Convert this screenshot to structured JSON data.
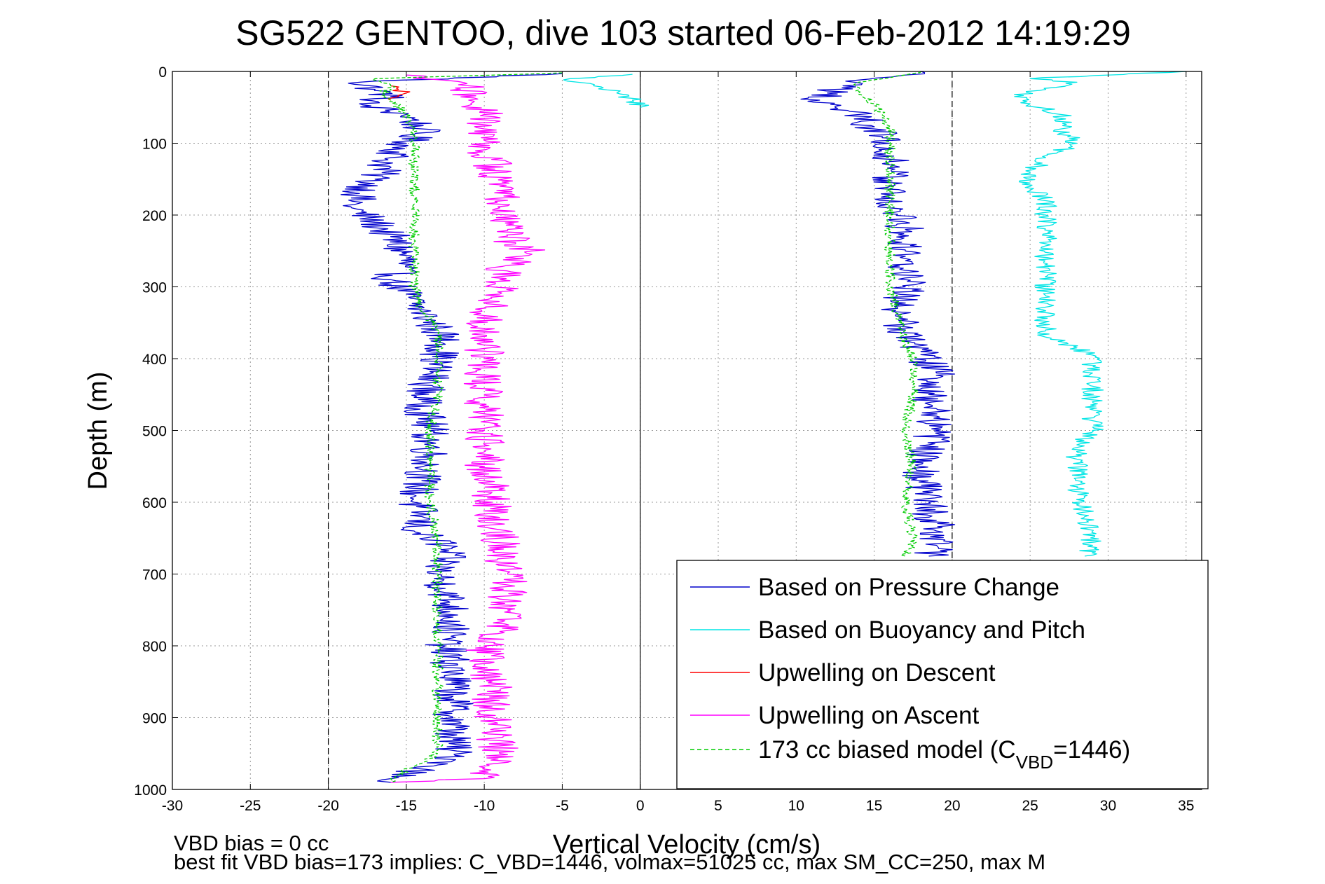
{
  "chart_data": {
    "type": "line",
    "title": "SG522 GENTOO, dive 103 started 06-Feb-2012 14:19:29",
    "xlabel": "Vertical Velocity (cm/s)",
    "ylabel": "Depth (m)",
    "xlim": [
      -30,
      36
    ],
    "ylim": [
      0,
      1000
    ],
    "y_reversed": true,
    "grid": true,
    "xticks": [
      -30,
      -25,
      -20,
      -15,
      -10,
      -5,
      0,
      5,
      10,
      15,
      20,
      25,
      30,
      35
    ],
    "yticks": [
      0,
      100,
      200,
      300,
      400,
      500,
      600,
      700,
      800,
      900,
      1000
    ],
    "reference_lines": [
      {
        "x": -20,
        "style": "dashed"
      },
      {
        "x": 0,
        "style": "solid"
      },
      {
        "x": 20,
        "style": "dashed"
      }
    ],
    "notes": [
      "VBD bias = 0 cc",
      "best fit VBD bias=173 implies: C_VBD=1446, volmax=51025 cc, max SM_CC=250, max M"
    ],
    "legend": {
      "placement": "bottom-right",
      "entries": [
        {
          "label": "Based on Pressure Change",
          "color": "#0000cc",
          "dashed": false
        },
        {
          "label": "Based on Buoyancy and Pitch",
          "color": "#00e5e5",
          "dashed": false
        },
        {
          "label": "Upwelling on Descent",
          "color": "#ff0000",
          "dashed": false
        },
        {
          "label": "Upwelling on Ascent",
          "color": "#ff00ff",
          "dashed": false
        },
        {
          "label": "173 cc biased model (C",
          "sub": "VBD",
          "after": "=1446)",
          "color": "#00cc00",
          "dashed": true
        }
      ]
    },
    "series": [
      {
        "name": "Based on Pressure Change",
        "color": "#0000cc",
        "dashed": false,
        "noise": 1.3,
        "segments": [
          {
            "depth": [
              3,
              15,
              25,
              35,
              45,
              60,
              80,
              100,
              120,
              150,
              170,
              190,
              210,
              230,
              260,
              290,
              310,
              335,
              360,
              380,
              400,
              430,
              460,
              500,
              540,
              570,
              600,
              620,
              640,
              660,
              680,
              700,
              720,
              760,
              800,
              840,
              870,
              900,
              930,
              960,
              985,
              990
            ],
            "velocity": [
              -5,
              -18,
              -17,
              -16,
              -18,
              -15,
              -14,
              -15,
              -16,
              -17,
              -18,
              -18.5,
              -17,
              -16,
              -15,
              -16,
              -15,
              -14,
              -13,
              -12.5,
              -13,
              -13.5,
              -14,
              -13.5,
              -13.5,
              -14,
              -14.5,
              -14,
              -14.5,
              -12.5,
              -12.5,
              -13,
              -12.5,
              -12,
              -12.5,
              -12,
              -12,
              -12,
              -12,
              -12,
              -16,
              -16
            ]
          },
          {
            "depth": [
              0,
              5,
              12,
              20,
              30,
              40,
              50,
              60,
              80,
              100,
              130,
              160,
              190,
              220,
              250,
              280,
              300,
              330,
              360,
              390,
              420,
              450,
              480,
              520,
              560,
              600,
              640,
              660,
              675
            ],
            "velocity": [
              18,
              17,
              14,
              13,
              12,
              11.5,
              12.5,
              14,
              15,
              16,
              16,
              16,
              16,
              17,
              17,
              17,
              17,
              16.5,
              17,
              18,
              19,
              18.5,
              19,
              18.5,
              18,
              18.5,
              19,
              19,
              18.5
            ]
          }
        ]
      },
      {
        "name": "Based on Buoyancy and Pitch",
        "color": "#00e5e5",
        "dashed": false,
        "noise": 0.7,
        "segments": [
          {
            "depth": [
              4,
              10,
              15,
              20,
              30,
              40,
              50
            ],
            "velocity": [
              -0.5,
              -4.5,
              -4,
              -3,
              -1.5,
              -0.5,
              0
            ]
          },
          {
            "depth": [
              0,
              10,
              15,
              25,
              35,
              45,
              60,
              80,
              100,
              120,
              140,
              160,
              180,
              200,
              240,
              280,
              320,
              360,
              370,
              385,
              395,
              420,
              460,
              500,
              520,
              540,
              580,
              620,
              660,
              675
            ],
            "velocity": [
              35,
              25,
              28,
              26,
              24,
              25,
              27,
              27,
              28,
              26,
              25,
              25,
              26,
              26,
              26,
              26,
              26,
              26,
              26,
              28,
              29,
              29,
              29,
              29,
              28,
              28,
              28,
              28.5,
              29,
              28.5
            ]
          },
          {
            "depth": [
              990,
              998
            ],
            "velocity": [
              25,
              23
            ]
          }
        ]
      },
      {
        "name": "Upwelling on Descent",
        "color": "#ff0000",
        "dashed": false,
        "noise": 0.6,
        "segments": [
          {
            "depth": [
              20,
              25,
              30,
              35,
              40
            ],
            "velocity": [
              -16,
              -15.5,
              -15,
              -15.5,
              -16
            ]
          }
        ]
      },
      {
        "name": "Upwelling on Ascent",
        "color": "#ff00ff",
        "dashed": false,
        "noise": 1.3,
        "segments": [
          {
            "depth": [
              5,
              20,
              40,
              60,
              80,
              100,
              130,
              160,
              190,
              220,
              240,
              250,
              270,
              290,
              310,
              340,
              360,
              400,
              450,
              500,
              550,
              600,
              650,
              700,
              750,
              780,
              800,
              850,
              900,
              950,
              985,
              990
            ],
            "velocity": [
              -15,
              -11,
              -11,
              -10,
              -10,
              -10,
              -9.5,
              -9,
              -9,
              -8.5,
              -8,
              -7,
              -8.5,
              -9,
              -9,
              -10,
              -10,
              -10,
              -10,
              -10,
              -10,
              -9.5,
              -9,
              -8.5,
              -8.5,
              -9,
              -10,
              -9.5,
              -9.5,
              -9,
              -10,
              -16
            ]
          }
        ]
      },
      {
        "name": "173 cc biased model (CVBD=1446)",
        "color": "#00cc00",
        "dashed": true,
        "noise": 0.35,
        "segments": [
          {
            "depth": [
              2,
              10,
              20,
              30,
              40,
              60,
              80,
              100,
              130,
              160,
              190,
              220,
              260,
              300,
              330,
              360,
              400,
              450,
              500,
              550,
              600,
              650,
              700,
              750,
              800,
              850,
              900,
              950,
              985,
              990
            ],
            "velocity": [
              -5,
              -17,
              -16,
              -16.5,
              -16,
              -15,
              -14.5,
              -14.5,
              -14.5,
              -14.5,
              -14.5,
              -14.5,
              -14.5,
              -14.5,
              -14,
              -13,
              -13,
              -13,
              -13.5,
              -13.5,
              -13.5,
              -13,
              -13,
              -13,
              -13,
              -13,
              -13,
              -13,
              -16,
              -16
            ]
          },
          {
            "depth": [
              0,
              5,
              15,
              30,
              45,
              60,
              80,
              100,
              140,
              180,
              220,
              260,
              300,
              340,
              380,
              400,
              450,
              500,
              550,
              600,
              650,
              675
            ],
            "velocity": [
              18,
              17,
              14,
              14,
              15,
              15.5,
              16,
              16,
              16,
              16,
              16,
              16,
              16,
              16.5,
              17,
              17.5,
              17.5,
              17,
              17.5,
              17,
              17.5,
              17
            ]
          },
          {
            "depth": [
              992,
              994
            ],
            "velocity": [
              5,
              25
            ]
          }
        ]
      }
    ]
  }
}
